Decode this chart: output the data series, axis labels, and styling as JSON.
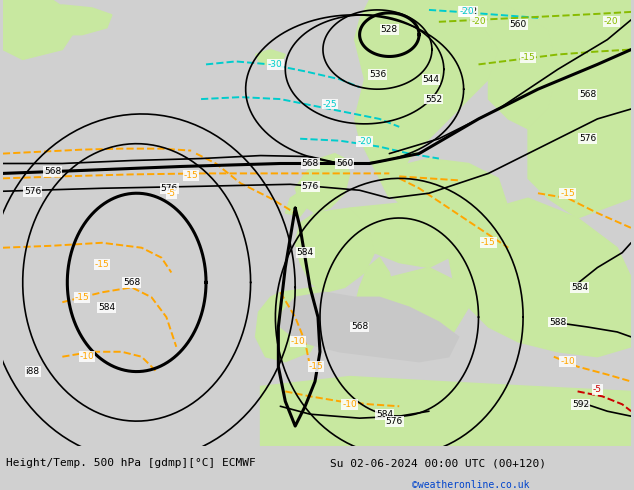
{
  "title_left": "Height/Temp. 500 hPa [gdmp][°C] ECMWF",
  "title_right": "Su 02-06-2024 00:00 UTC (00+120)",
  "credit": "©weatheronline.co.uk",
  "bg_ocean_color": "#c8c8c8",
  "bg_land_color": "#c8e8a0",
  "bg_highlat_color": "#b0b0b0",
  "contour_height_color": "#000000",
  "contour_temp_orange_color": "#ffa500",
  "contour_temp_cyan_color": "#00cccc",
  "contour_temp_red_color": "#cc0000",
  "contour_temp_green_color": "#88bb00",
  "label_fontsize": 6.5,
  "title_fontsize": 8,
  "credit_fontsize": 7,
  "fig_width": 6.34,
  "fig_height": 4.9,
  "dpi": 100
}
